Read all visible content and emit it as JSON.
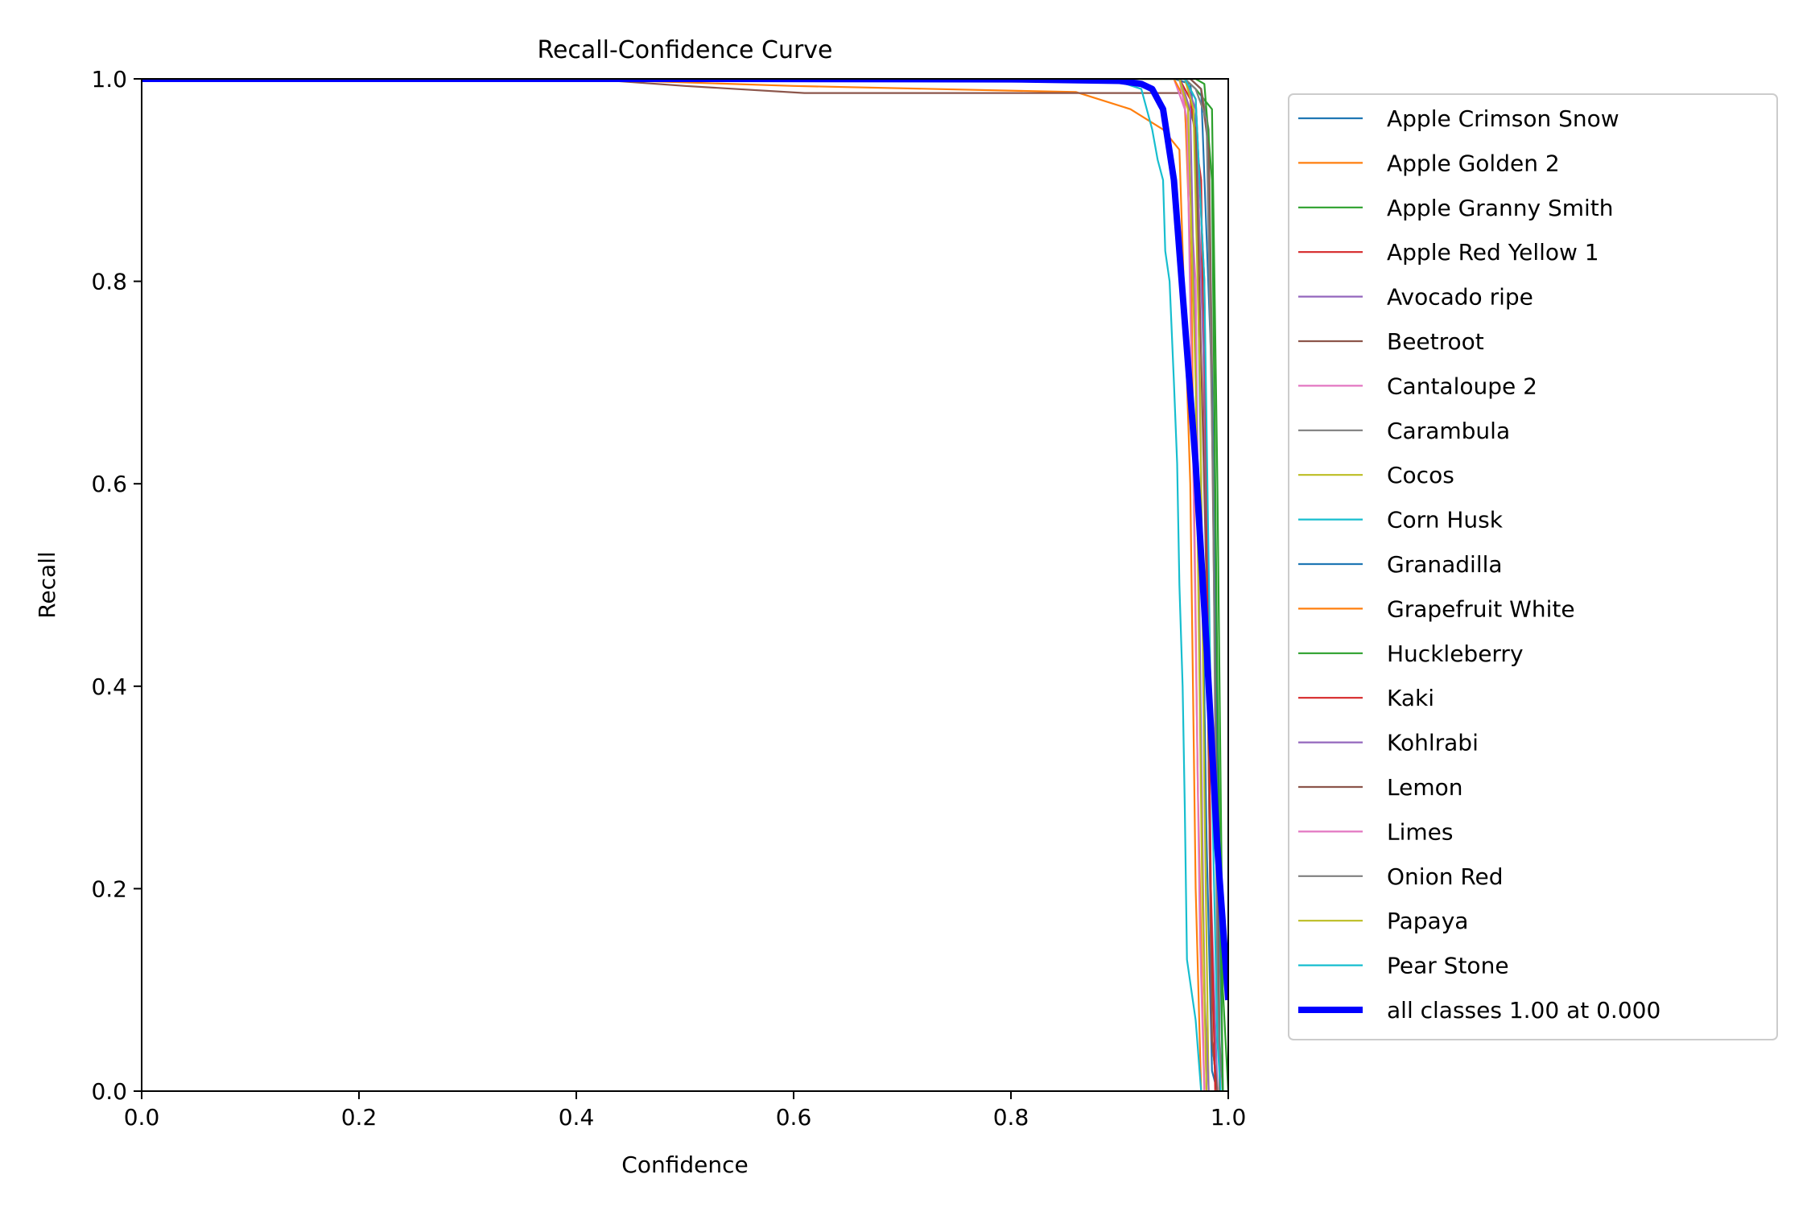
{
  "chart_data": {
    "type": "line",
    "title": "Recall-Confidence Curve",
    "xlabel": "Confidence",
    "ylabel": "Recall",
    "xlim": [
      0,
      1
    ],
    "ylim": [
      0,
      1
    ],
    "xticks": [
      "0.0",
      "0.2",
      "0.4",
      "0.6",
      "0.8",
      "1.0"
    ],
    "yticks": [
      "0.0",
      "0.2",
      "0.4",
      "0.6",
      "0.8",
      "1.0"
    ],
    "grid": false,
    "legend_position": "outside-right",
    "series": [
      {
        "name": "Apple Crimson Snow",
        "color": "#1f77b4",
        "width": "thin",
        "points": [
          [
            0,
            1
          ],
          [
            0.95,
            1
          ],
          [
            0.965,
            0.995
          ],
          [
            0.97,
            0.95
          ],
          [
            0.975,
            0.6
          ],
          [
            0.98,
            0.25
          ],
          [
            0.985,
            0.02
          ],
          [
            0.99,
            0
          ]
        ]
      },
      {
        "name": "Apple Golden 2",
        "color": "#ff7f0e",
        "width": "thin",
        "points": [
          [
            0,
            1
          ],
          [
            0.4,
            1
          ],
          [
            0.6,
            0.993
          ],
          [
            0.86,
            0.987
          ],
          [
            0.91,
            0.97
          ],
          [
            0.94,
            0.95
          ],
          [
            0.955,
            0.93
          ],
          [
            0.965,
            0.6
          ],
          [
            0.97,
            0.2
          ],
          [
            0.975,
            0
          ]
        ]
      },
      {
        "name": "Apple Granny Smith",
        "color": "#2ca02c",
        "width": "thin",
        "points": [
          [
            0,
            1
          ],
          [
            0.96,
            1
          ],
          [
            0.97,
            0.99
          ],
          [
            0.985,
            0.97
          ],
          [
            0.99,
            0.6
          ],
          [
            0.995,
            0.1
          ],
          [
            1,
            0
          ]
        ]
      },
      {
        "name": "Apple Red Yellow 1",
        "color": "#d62728",
        "width": "thin",
        "points": [
          [
            0,
            1
          ],
          [
            0.955,
            1
          ],
          [
            0.965,
            0.98
          ],
          [
            0.975,
            0.9
          ],
          [
            0.98,
            0.5
          ],
          [
            0.985,
            0.05
          ],
          [
            0.99,
            0
          ]
        ]
      },
      {
        "name": "Avocado ripe",
        "color": "#9467bd",
        "width": "thin",
        "points": [
          [
            0,
            1
          ],
          [
            0.96,
            1
          ],
          [
            0.97,
            0.97
          ],
          [
            0.978,
            0.7
          ],
          [
            0.984,
            0.2
          ],
          [
            0.99,
            0
          ]
        ]
      },
      {
        "name": "Beetroot",
        "color": "#8c564b",
        "width": "thin",
        "points": [
          [
            0,
            1
          ],
          [
            0.41,
            1
          ],
          [
            0.5,
            0.993
          ],
          [
            0.61,
            0.986
          ],
          [
            0.86,
            0.986
          ],
          [
            0.96,
            0.986
          ],
          [
            0.97,
            0.95
          ],
          [
            0.98,
            0.5
          ],
          [
            0.985,
            0.05
          ],
          [
            0.99,
            0
          ]
        ]
      },
      {
        "name": "Cantaloupe 2",
        "color": "#e377c2",
        "width": "thin",
        "points": [
          [
            0,
            1
          ],
          [
            0.95,
            1
          ],
          [
            0.96,
            0.97
          ],
          [
            0.97,
            0.8
          ],
          [
            0.975,
            0.3
          ],
          [
            0.98,
            0
          ]
        ]
      },
      {
        "name": "Carambula",
        "color": "#7f7f7f",
        "width": "thin",
        "points": [
          [
            0,
            1
          ],
          [
            0.965,
            1
          ],
          [
            0.975,
            0.99
          ],
          [
            0.982,
            0.95
          ],
          [
            0.988,
            0.5
          ],
          [
            0.992,
            0.05
          ],
          [
            0.995,
            0
          ]
        ]
      },
      {
        "name": "Cocos",
        "color": "#bcbd22",
        "width": "thin",
        "points": [
          [
            0,
            1
          ],
          [
            0.96,
            1
          ],
          [
            0.968,
            0.97
          ],
          [
            0.974,
            0.7
          ],
          [
            0.978,
            0.3
          ],
          [
            0.982,
            0
          ]
        ]
      },
      {
        "name": "Corn Husk",
        "color": "#17becf",
        "width": "thin",
        "points": [
          [
            0,
            1
          ],
          [
            0.4,
            1
          ],
          [
            0.6,
            0.998
          ],
          [
            0.9,
            0.997
          ],
          [
            0.92,
            0.99
          ],
          [
            0.93,
            0.95
          ],
          [
            0.935,
            0.92
          ],
          [
            0.94,
            0.9
          ],
          [
            0.942,
            0.83
          ],
          [
            0.946,
            0.8
          ],
          [
            0.95,
            0.7
          ],
          [
            0.953,
            0.62
          ],
          [
            0.955,
            0.5
          ],
          [
            0.958,
            0.4
          ],
          [
            0.96,
            0.28
          ],
          [
            0.962,
            0.13
          ],
          [
            0.966,
            0.1
          ],
          [
            0.97,
            0.07
          ],
          [
            0.975,
            0
          ]
        ]
      },
      {
        "name": "Granadilla",
        "color": "#1f77b4",
        "width": "thin",
        "points": [
          [
            0,
            1
          ],
          [
            0.965,
            1
          ],
          [
            0.975,
            0.99
          ],
          [
            0.985,
            0.7
          ],
          [
            0.99,
            0.3
          ],
          [
            0.995,
            0
          ]
        ]
      },
      {
        "name": "Grapefruit White",
        "color": "#ff7f0e",
        "width": "thin",
        "points": [
          [
            0,
            1
          ],
          [
            0.95,
            1
          ],
          [
            0.96,
            0.98
          ],
          [
            0.966,
            0.8
          ],
          [
            0.972,
            0.3
          ],
          [
            0.978,
            0
          ]
        ]
      },
      {
        "name": "Huckleberry",
        "color": "#2ca02c",
        "width": "thin",
        "points": [
          [
            0,
            1
          ],
          [
            0.97,
            1
          ],
          [
            0.978,
            0.995
          ],
          [
            0.985,
            0.9
          ],
          [
            0.99,
            0.4
          ],
          [
            0.995,
            0
          ]
        ]
      },
      {
        "name": "Kaki",
        "color": "#d62728",
        "width": "thin",
        "points": [
          [
            0,
            1
          ],
          [
            0.96,
            1
          ],
          [
            0.97,
            0.98
          ],
          [
            0.978,
            0.8
          ],
          [
            0.984,
            0.2
          ],
          [
            0.988,
            0
          ]
        ]
      },
      {
        "name": "Kohlrabi",
        "color": "#9467bd",
        "width": "thin",
        "points": [
          [
            0,
            1
          ],
          [
            0.955,
            1
          ],
          [
            0.965,
            0.97
          ],
          [
            0.972,
            0.6
          ],
          [
            0.978,
            0.1
          ],
          [
            0.982,
            0
          ]
        ]
      },
      {
        "name": "Lemon",
        "color": "#8c564b",
        "width": "thin",
        "points": [
          [
            0,
            1
          ],
          [
            0.965,
            1
          ],
          [
            0.975,
            0.99
          ],
          [
            0.982,
            0.93
          ],
          [
            0.988,
            0.4
          ],
          [
            0.992,
            0
          ]
        ]
      },
      {
        "name": "Limes",
        "color": "#e377c2",
        "width": "thin",
        "points": [
          [
            0,
            1
          ],
          [
            0.955,
            1
          ],
          [
            0.962,
            0.96
          ],
          [
            0.968,
            0.6
          ],
          [
            0.974,
            0.15
          ],
          [
            0.978,
            0
          ]
        ]
      },
      {
        "name": "Onion Red",
        "color": "#7f7f7f",
        "width": "thin",
        "points": [
          [
            0,
            1
          ],
          [
            0.96,
            1
          ],
          [
            0.97,
            0.99
          ],
          [
            0.98,
            0.96
          ],
          [
            0.986,
            0.6
          ],
          [
            0.99,
            0.1
          ],
          [
            0.993,
            0
          ]
        ]
      },
      {
        "name": "Papaya",
        "color": "#bcbd22",
        "width": "thin",
        "points": [
          [
            0,
            1
          ],
          [
            0.955,
            1
          ],
          [
            0.963,
            0.97
          ],
          [
            0.97,
            0.7
          ],
          [
            0.976,
            0.2
          ],
          [
            0.98,
            0
          ]
        ]
      },
      {
        "name": "Pear Stone",
        "color": "#17becf",
        "width": "thin",
        "points": [
          [
            0,
            1
          ],
          [
            0.96,
            1
          ],
          [
            0.97,
            0.98
          ],
          [
            0.978,
            0.8
          ],
          [
            0.985,
            0.3
          ],
          [
            0.99,
            0.05
          ],
          [
            0.993,
            0
          ]
        ]
      },
      {
        "name": "all classes 1.00 at 0.000",
        "color": "#0000ff",
        "width": "thick",
        "points": [
          [
            0,
            1
          ],
          [
            0.5,
            1
          ],
          [
            0.8,
            0.9995
          ],
          [
            0.9,
            0.998
          ],
          [
            0.92,
            0.995
          ],
          [
            0.93,
            0.99
          ],
          [
            0.94,
            0.97
          ],
          [
            0.95,
            0.9
          ],
          [
            0.96,
            0.76
          ],
          [
            0.97,
            0.62
          ],
          [
            0.98,
            0.44
          ],
          [
            0.99,
            0.24
          ],
          [
            1,
            0.09
          ]
        ]
      }
    ]
  }
}
